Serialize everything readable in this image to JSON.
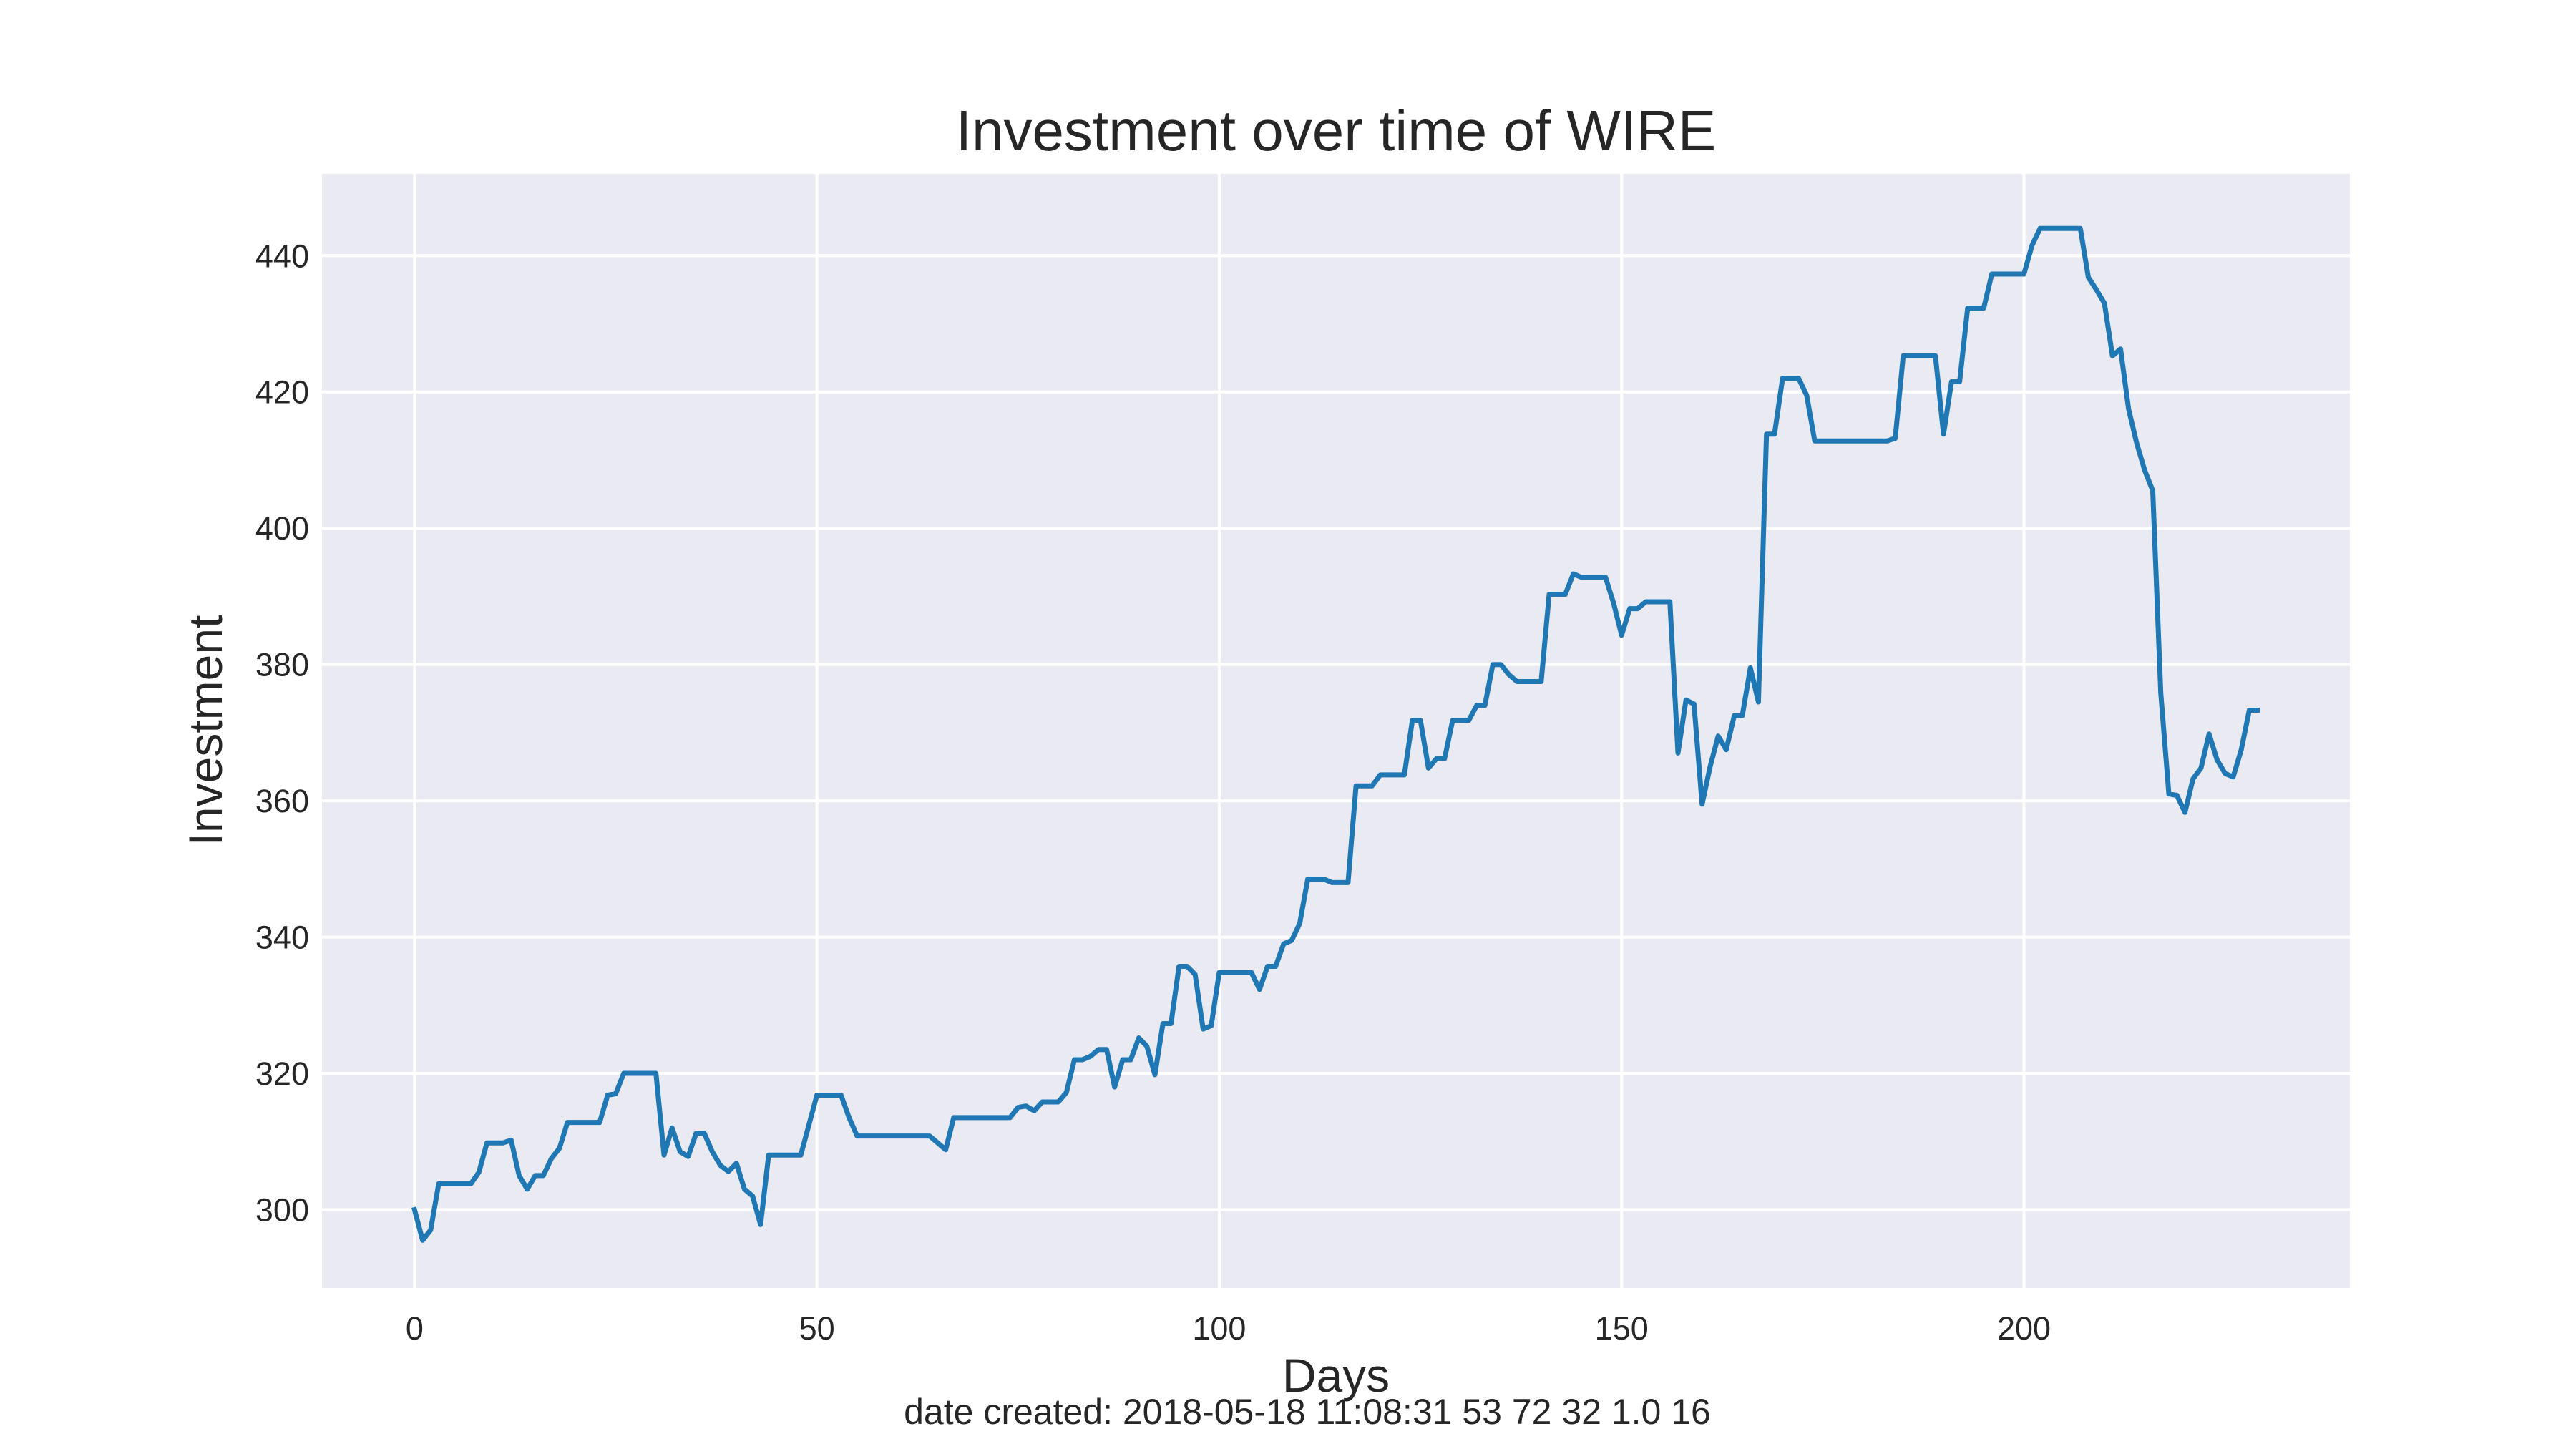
{
  "chart_data": {
    "type": "line",
    "title": "Investment over time of WIRE",
    "xlabel": "Days",
    "ylabel": "Investment",
    "xlim": [
      -11.5,
      240.5
    ],
    "ylim": [
      288.5,
      452
    ],
    "grid": true,
    "x_ticks": [
      0,
      50,
      100,
      150,
      200
    ],
    "y_ticks": [
      300,
      320,
      340,
      360,
      380,
      400,
      420,
      440
    ],
    "series": [
      {
        "color": "#1f77b4",
        "points": [
          [
            0,
            300
          ],
          [
            1,
            295.5
          ],
          [
            2,
            297
          ],
          [
            3,
            303.8
          ],
          [
            7,
            303.8
          ],
          [
            8,
            305.5
          ],
          [
            9,
            309.8
          ],
          [
            11,
            309.8
          ],
          [
            12,
            310.2
          ],
          [
            13,
            305
          ],
          [
            14,
            303
          ],
          [
            15,
            305
          ],
          [
            16,
            305
          ],
          [
            17,
            307.5
          ],
          [
            18,
            309
          ],
          [
            19,
            312.8
          ],
          [
            23,
            312.8
          ],
          [
            24,
            316.8
          ],
          [
            25,
            317
          ],
          [
            26,
            320
          ],
          [
            30,
            320
          ],
          [
            31,
            308
          ],
          [
            32,
            312
          ],
          [
            33,
            308.5
          ],
          [
            34,
            307.8
          ],
          [
            35,
            311.2
          ],
          [
            36,
            311.2
          ],
          [
            37,
            308.5
          ],
          [
            38,
            306.5
          ],
          [
            39,
            305.6
          ],
          [
            40,
            306.8
          ],
          [
            41,
            303
          ],
          [
            42,
            302
          ],
          [
            43,
            297.8
          ],
          [
            44,
            308
          ],
          [
            48,
            308
          ],
          [
            50,
            316.8
          ],
          [
            53,
            316.8
          ],
          [
            54,
            313.5
          ],
          [
            55,
            310.8
          ],
          [
            64,
            310.8
          ],
          [
            66,
            308.8
          ],
          [
            67,
            313.5
          ],
          [
            74,
            313.5
          ],
          [
            75,
            315
          ],
          [
            76,
            315.2
          ],
          [
            77,
            314.5
          ],
          [
            78,
            315.8
          ],
          [
            80,
            315.8
          ],
          [
            81,
            317.2
          ],
          [
            82,
            322
          ],
          [
            83,
            322
          ],
          [
            84,
            322.5
          ],
          [
            85,
            323.5
          ],
          [
            86,
            323.5
          ],
          [
            87,
            318
          ],
          [
            88,
            322
          ],
          [
            89,
            322
          ],
          [
            90,
            325.2
          ],
          [
            91,
            324
          ],
          [
            92,
            319.8
          ],
          [
            93,
            327.3
          ],
          [
            94,
            327.3
          ],
          [
            95,
            335.7
          ],
          [
            96,
            335.7
          ],
          [
            97,
            334.5
          ],
          [
            98,
            326.5
          ],
          [
            99,
            327
          ],
          [
            100,
            334.8
          ],
          [
            104,
            334.8
          ],
          [
            105,
            332.3
          ],
          [
            106,
            335.7
          ],
          [
            107,
            335.7
          ],
          [
            108,
            339
          ],
          [
            109,
            339.5
          ],
          [
            110,
            342
          ],
          [
            111,
            348.5
          ],
          [
            113,
            348.5
          ],
          [
            114,
            348
          ],
          [
            116,
            348
          ],
          [
            117,
            362.2
          ],
          [
            119,
            362.2
          ],
          [
            120,
            363.8
          ],
          [
            123,
            363.8
          ],
          [
            124,
            371.8
          ],
          [
            125,
            371.8
          ],
          [
            126,
            364.8
          ],
          [
            127,
            366.2
          ],
          [
            128,
            366.2
          ],
          [
            129,
            371.8
          ],
          [
            131,
            371.8
          ],
          [
            132,
            374
          ],
          [
            133,
            374
          ],
          [
            134,
            380
          ],
          [
            135,
            380
          ],
          [
            136,
            378.5
          ],
          [
            137,
            377.5
          ],
          [
            140,
            377.5
          ],
          [
            141,
            390.3
          ],
          [
            143,
            390.3
          ],
          [
            144,
            393.3
          ],
          [
            145,
            392.8
          ],
          [
            148,
            392.8
          ],
          [
            149,
            389
          ],
          [
            150,
            384.3
          ],
          [
            151,
            388.2
          ],
          [
            152,
            388.2
          ],
          [
            153,
            389.2
          ],
          [
            156,
            389.2
          ],
          [
            157,
            367
          ],
          [
            158,
            374.8
          ],
          [
            159,
            374.2
          ],
          [
            160,
            359.5
          ],
          [
            161,
            365
          ],
          [
            162,
            369.5
          ],
          [
            163,
            367.5
          ],
          [
            164,
            372.5
          ],
          [
            165,
            372.5
          ],
          [
            166,
            379.5
          ],
          [
            167,
            374.5
          ],
          [
            168,
            413.8
          ],
          [
            169,
            413.8
          ],
          [
            170,
            422
          ],
          [
            172,
            422
          ],
          [
            173,
            419.5
          ],
          [
            174,
            412.8
          ],
          [
            183,
            412.8
          ],
          [
            184,
            413.2
          ],
          [
            185,
            425.3
          ],
          [
            189,
            425.3
          ],
          [
            190,
            413.8
          ],
          [
            191,
            421.5
          ],
          [
            192,
            421.5
          ],
          [
            193,
            432.3
          ],
          [
            195,
            432.3
          ],
          [
            196,
            437.3
          ],
          [
            200,
            437.3
          ],
          [
            201,
            441.5
          ],
          [
            202,
            444
          ],
          [
            207,
            444
          ],
          [
            208,
            436.8
          ],
          [
            209,
            435
          ],
          [
            210,
            433
          ],
          [
            211,
            425.3
          ],
          [
            212,
            426.3
          ],
          [
            213,
            417.5
          ],
          [
            214,
            412.5
          ],
          [
            215,
            408.5
          ],
          [
            216,
            405.5
          ],
          [
            217,
            375.8
          ],
          [
            218,
            361
          ],
          [
            219,
            360.8
          ],
          [
            220,
            358.3
          ],
          [
            221,
            363.2
          ],
          [
            222,
            364.8
          ],
          [
            223,
            369.8
          ],
          [
            224,
            366
          ],
          [
            225,
            364
          ],
          [
            226,
            363.5
          ],
          [
            227,
            367.5
          ],
          [
            228,
            373.3
          ],
          [
            229,
            373.3
          ]
        ]
      }
    ]
  },
  "footer": "date created: 2018-05-18 11:08:31 53 72 32 1.0 16"
}
